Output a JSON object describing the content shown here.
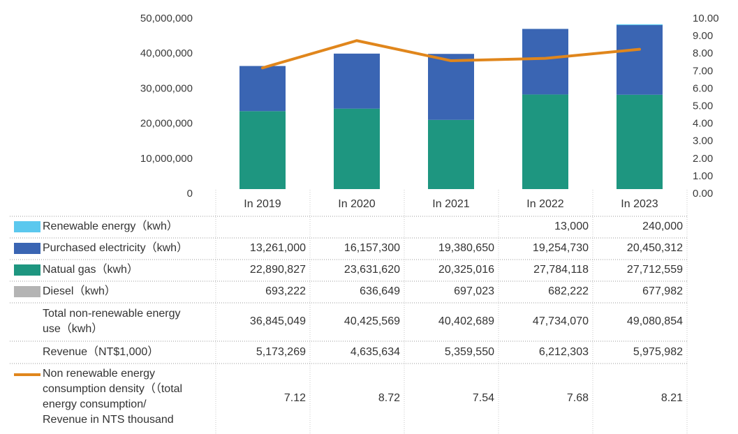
{
  "chart_data": {
    "type": "bar",
    "stacked": true,
    "categories": [
      "In 2019",
      "In 2020",
      "In 2021",
      "In 2022",
      "In 2023"
    ],
    "y_left": {
      "ylim": [
        0,
        50000000
      ],
      "ticks": [
        "0",
        "10,000,000",
        "20,000,000",
        "30,000,000",
        "40,000,000",
        "50,000,000"
      ]
    },
    "y_right": {
      "ylim": [
        0,
        10
      ],
      "ticks": [
        "0.00",
        "1.00",
        "2.00",
        "3.00",
        "4.00",
        "5.00",
        "6.00",
        "7.00",
        "8.00",
        "9.00",
        "10.00"
      ]
    },
    "series": [
      {
        "name": "Renewable energy（kwh）",
        "kind": "bar",
        "color": "#5bc8ee",
        "values": [
          null,
          null,
          null,
          13000,
          240000
        ],
        "display": [
          "",
          "",
          "",
          "13,000",
          "240,000"
        ]
      },
      {
        "name": "Purchased electricity（kwh）",
        "kind": "bar",
        "color": "#3a65b3",
        "values": [
          13261000,
          16157300,
          19380650,
          19254730,
          20450312
        ],
        "display": [
          "13,261,000",
          "16,157,300",
          "19,380,650",
          "19,254,730",
          "20,450,312"
        ]
      },
      {
        "name": "Natual gas（kwh）",
        "kind": "bar",
        "color": "#1e9680",
        "values": [
          22890827,
          23631620,
          20325016,
          27784118,
          27712559
        ],
        "display": [
          "22,890,827",
          "23,631,620",
          "20,325,016",
          "27,784,118",
          "27,712,559"
        ]
      },
      {
        "name": "Diesel（kwh）",
        "kind": "bar",
        "color": "#b4b4b4",
        "values": [
          693222,
          636649,
          697023,
          682222,
          677982
        ],
        "display": [
          "693,222",
          "636,649",
          "697,023",
          "682,222",
          "677,982"
        ]
      },
      {
        "name": "Total non-renewable energy use（kwh）",
        "kind": "table",
        "values": [
          36845049,
          40425569,
          40402689,
          47734070,
          49080854
        ],
        "display": [
          "36,845,049",
          "40,425,569",
          "40,402,689",
          "47,734,070",
          "49,080,854"
        ]
      },
      {
        "name": "Revenue（NT$1,000）",
        "kind": "table",
        "values": [
          5173269,
          4635634,
          5359550,
          6212303,
          5975982
        ],
        "display": [
          "5,173,269",
          "4,635,634",
          "5,359,550",
          "6,212,303",
          "5,975,982"
        ]
      },
      {
        "name": "Non renewable energy consumption density（（total energy consumption/ Revenue in NTS thousand",
        "kind": "line",
        "axis": "right",
        "color": "#e0861c",
        "values": [
          7.12,
          8.72,
          7.54,
          7.68,
          8.21
        ],
        "display": [
          "7.12",
          "8.72",
          "7.54",
          "7.68",
          "8.21"
        ]
      }
    ]
  }
}
